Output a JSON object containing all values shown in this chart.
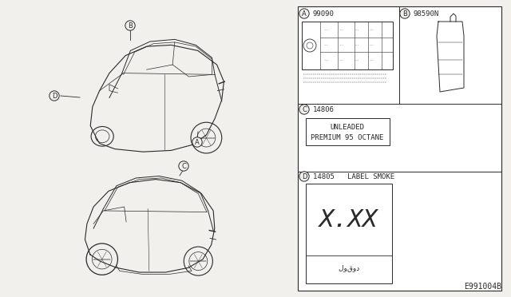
{
  "bg_color": "#f2f0ec",
  "line_color": "#2a2a2a",
  "figure_code": "E991004B",
  "label_A": "A",
  "label_B": "B",
  "label_C": "C",
  "label_D": "D",
  "part_A": "99090",
  "part_B": "98590N",
  "part_C": "14806",
  "part_D": "14805   LABEL SMOKE",
  "unlead_line1": "UNLEADED",
  "unlead_line2": "PREMIUM 95 OCTANE",
  "smoke_text": "X.XX",
  "smoke_bottom": "‫لوقود‬"
}
